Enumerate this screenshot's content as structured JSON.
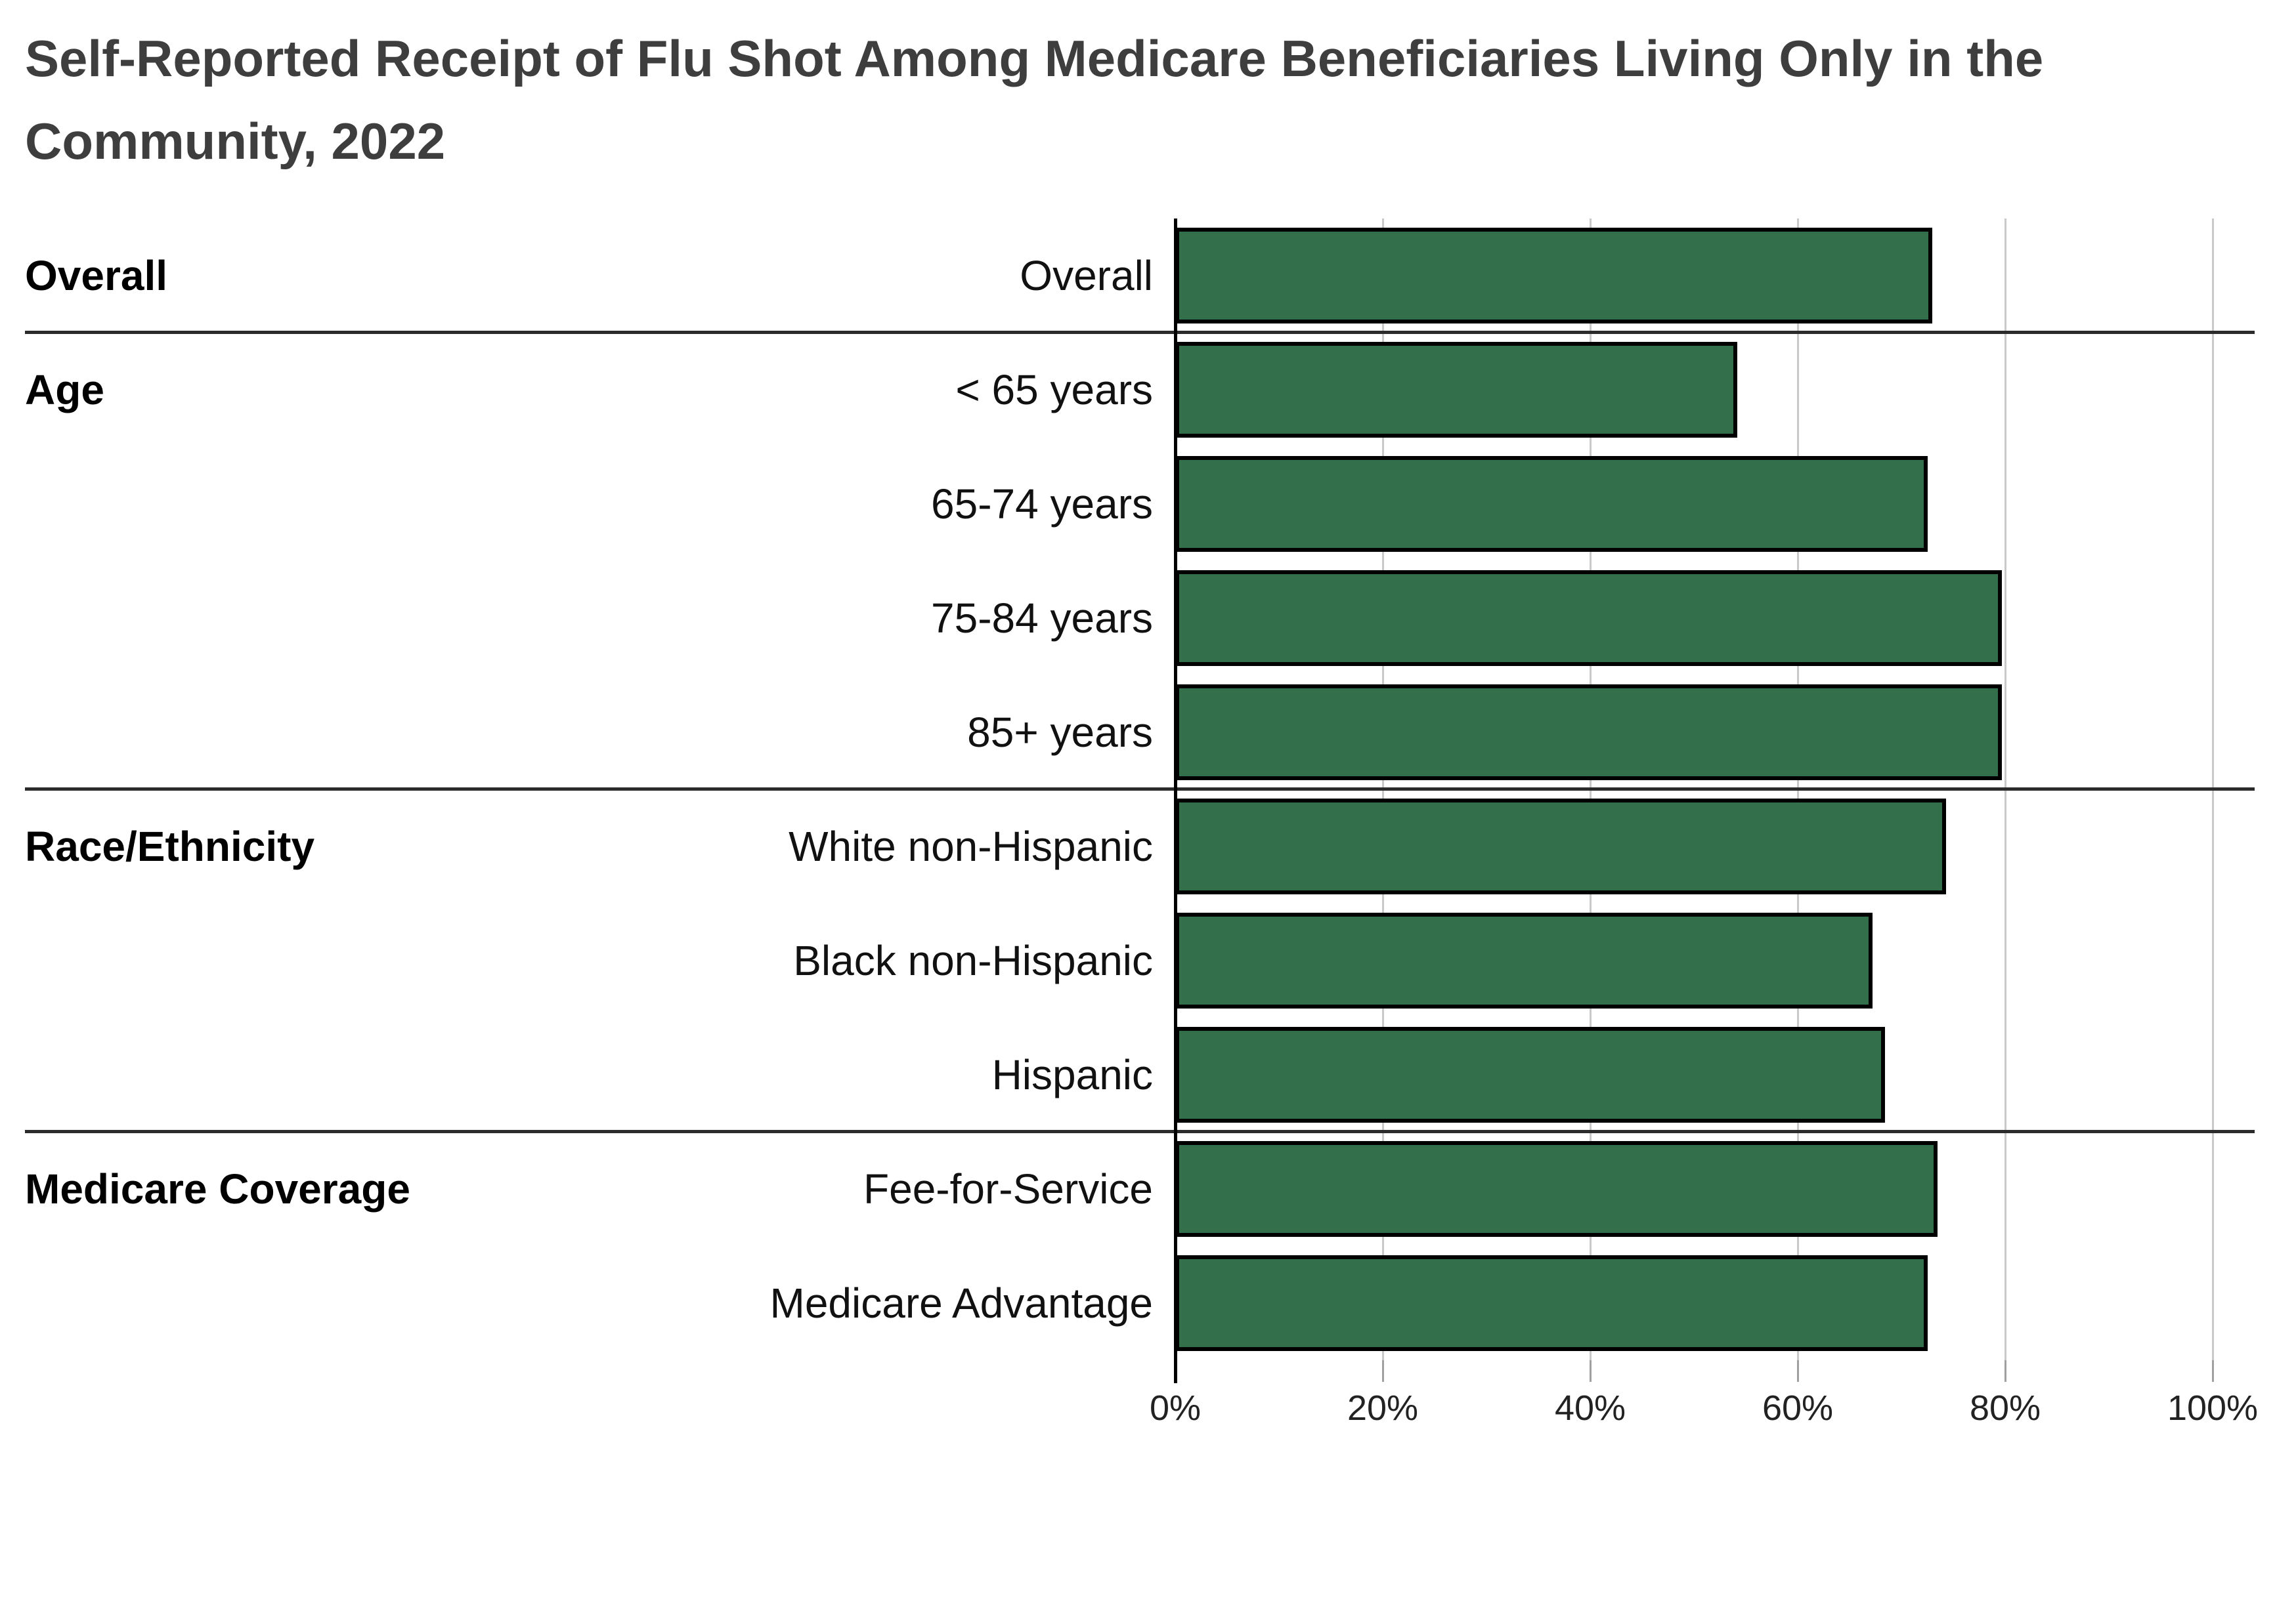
{
  "title": {
    "line1": "Self-Reported Receipt of Flu Shot Among Medicare Beneficiaries Living Only in the",
    "line2": "Community, 2022"
  },
  "chart_data": {
    "type": "bar",
    "orientation": "horizontal",
    "title": "Self-Reported Receipt of Flu Shot Among Medicare Beneficiaries Living Only in the Community, 2022",
    "xlabel": "",
    "ylabel": "",
    "xlim": [
      0,
      100
    ],
    "x_tick_labels": [
      "0%",
      "20%",
      "40%",
      "60%",
      "80%",
      "100%"
    ],
    "x_tick_values": [
      0,
      20,
      40,
      60,
      80,
      100
    ],
    "grid": "vertical-only",
    "legend": "none",
    "sections": [
      {
        "group": "Overall",
        "rows": [
          {
            "label": "Overall",
            "value": 73.0
          }
        ]
      },
      {
        "group": "Age",
        "rows": [
          {
            "label": "< 65 years",
            "value": 54.2
          },
          {
            "label": "65-74 years",
            "value": 72.5
          },
          {
            "label": "75-84 years",
            "value": 79.7
          },
          {
            "label": "85+ years",
            "value": 79.7
          }
        ]
      },
      {
        "group": "Race/Ethnicity",
        "rows": [
          {
            "label": "White non-Hispanic",
            "value": 74.3
          },
          {
            "label": "Black non-Hispanic",
            "value": 67.2
          },
          {
            "label": "Hispanic",
            "value": 68.4
          }
        ]
      },
      {
        "group": "Medicare Coverage",
        "rows": [
          {
            "label": "Fee-for-Service",
            "value": 73.5
          },
          {
            "label": "Medicare Advantage",
            "value": 72.5
          }
        ]
      }
    ],
    "colors": {
      "bar_fill": "#336F4A",
      "bar_border": "#000000",
      "gridline": "#C9C9C9",
      "axis_line": "#000000",
      "tick": "#A0A0A0",
      "tick_label": "#222222",
      "separator": "#2B2B2B",
      "title_text": "#3E3E3E",
      "label_text": "#111111",
      "group_label_text": "#000000",
      "background": "#FFFFFF"
    }
  }
}
